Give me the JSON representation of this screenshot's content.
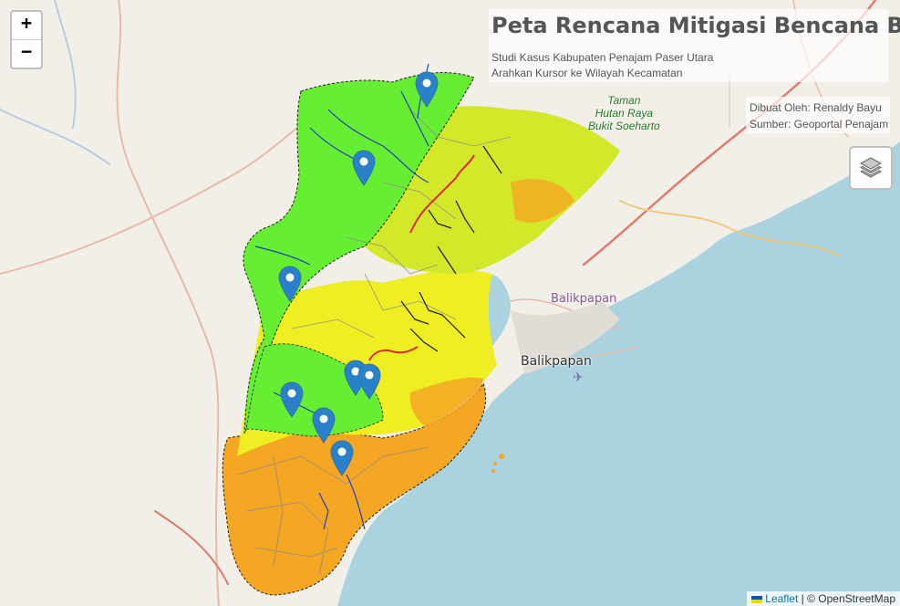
{
  "map_title": "Peta Rencana Mitigasi Bencana Banjir",
  "subtitle_1": "Studi Kasus Kabupaten Penajam Paser Utara",
  "subtitle_2": "Arahkan Kursor ke Wilayah Kecamatan",
  "credit_1": "Dibuat Oleh: Renaldy Bayu",
  "credit_2": "Sumber: Geoportal Penajam",
  "zoom_in": "+",
  "zoom_out": "−",
  "attribution_link": "Leaflet",
  "attribution_text": " | © OpenStreetMap",
  "labels": {
    "park_1": "Taman",
    "park_2": "Hutan Raya",
    "park_3": "Bukit Soeharto",
    "city_balikpapan": "Balikpapan",
    "district_balikpapan": "Balikpapan"
  },
  "colors": {
    "water": "#aad3df",
    "land": "#f2efe9",
    "low_risk": "#66ee33",
    "medium_risk": "#eeee22",
    "high_risk": "#f5a623",
    "river": "#1f3fbf",
    "marker": "#2a81cb"
  },
  "icons": {
    "layers": "layers-icon",
    "marker": "map-marker-icon"
  }
}
